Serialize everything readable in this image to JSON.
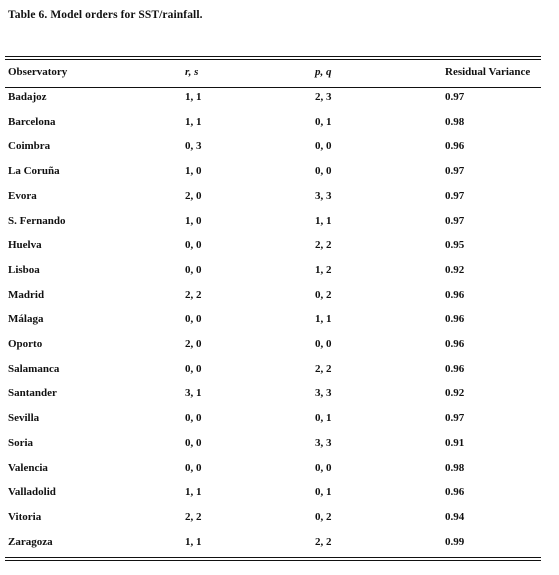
{
  "caption": "Table 6. Model orders for SST/rainfall.",
  "headers": {
    "observatory": "Observatory",
    "rs": "r, s",
    "pq": "p, q",
    "residual": "Residual Variance"
  },
  "rows": [
    {
      "observatory": "Badajoz",
      "rs": "1, 1",
      "pq": "2, 3",
      "residual": "0.97"
    },
    {
      "observatory": "Barcelona",
      "rs": "1, 1",
      "pq": "0, 1",
      "residual": "0.98"
    },
    {
      "observatory": "Coimbra",
      "rs": "0, 3",
      "pq": "0, 0",
      "residual": "0.96"
    },
    {
      "observatory": "La Coruña",
      "rs": "1, 0",
      "pq": "0, 0",
      "residual": "0.97"
    },
    {
      "observatory": "Evora",
      "rs": "2, 0",
      "pq": "3, 3",
      "residual": "0.97"
    },
    {
      "observatory": "S. Fernando",
      "rs": "1, 0",
      "pq": "1, 1",
      "residual": "0.97"
    },
    {
      "observatory": "Huelva",
      "rs": "0, 0",
      "pq": "2, 2",
      "residual": "0.95"
    },
    {
      "observatory": "Lisboa",
      "rs": "0, 0",
      "pq": "1, 2",
      "residual": "0.92"
    },
    {
      "observatory": "Madrid",
      "rs": "2, 2",
      "pq": "0, 2",
      "residual": "0.96"
    },
    {
      "observatory": "Málaga",
      "rs": "0, 0",
      "pq": "1, 1",
      "residual": "0.96"
    },
    {
      "observatory": "Oporto",
      "rs": "2, 0",
      "pq": "0, 0",
      "residual": "0.96"
    },
    {
      "observatory": "Salamanca",
      "rs": "0, 0",
      "pq": "2, 2",
      "residual": "0.96"
    },
    {
      "observatory": "Santander",
      "rs": "3, 1",
      "pq": "3, 3",
      "residual": "0.92"
    },
    {
      "observatory": "Sevilla",
      "rs": "0, 0",
      "pq": "0, 1",
      "residual": "0.97"
    },
    {
      "observatory": "Soria",
      "rs": "0, 0",
      "pq": "3, 3",
      "residual": "0.91"
    },
    {
      "observatory": "Valencia",
      "rs": "0, 0",
      "pq": "0, 0",
      "residual": "0.98"
    },
    {
      "observatory": "Valladolid",
      "rs": "1, 1",
      "pq": "0, 1",
      "residual": "0.96"
    },
    {
      "observatory": "Vitoria",
      "rs": "2, 2",
      "pq": "0, 2",
      "residual": "0.94"
    },
    {
      "observatory": "Zaragoza",
      "rs": "1, 1",
      "pq": "2, 2",
      "residual": "0.99"
    }
  ]
}
